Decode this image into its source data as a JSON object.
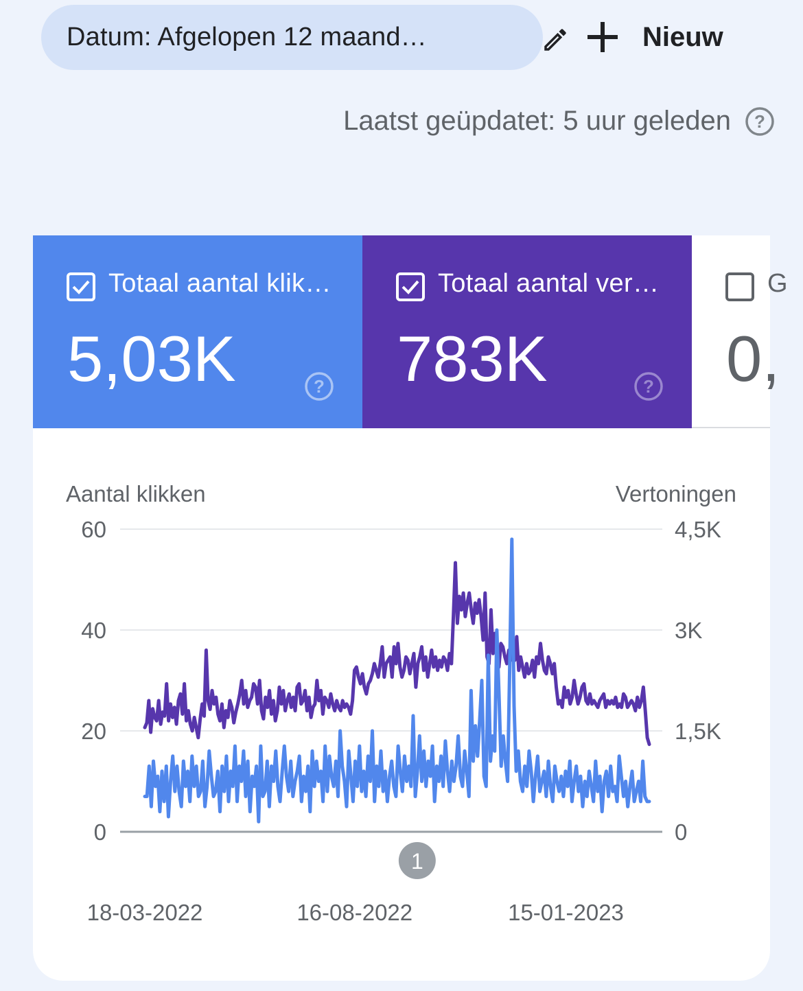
{
  "filter": {
    "label": "Datum: Afgelopen 12 maand…"
  },
  "new_button": {
    "label": "Nieuw"
  },
  "last_updated": "Laatst geüpdatet: 5 uur geleden",
  "metrics": [
    {
      "label": "Totaal aantal klik…",
      "value": "5,03K",
      "checked": true,
      "color": "#5187ec"
    },
    {
      "label": "Totaal aantal ver…",
      "value": "783K",
      "checked": true,
      "color": "#5736ac"
    },
    {
      "label": "G",
      "value": "0,",
      "checked": false,
      "color": "#ffffff"
    }
  ],
  "chart_data": {
    "type": "line",
    "left_axis_label": "Aantal klikken",
    "right_axis_label": "Vertoningen",
    "left_ticks": [
      "0",
      "20",
      "40",
      "60"
    ],
    "right_ticks": [
      "0",
      "1,5K",
      "3K",
      "4,5K"
    ],
    "ylim_left": [
      0,
      60
    ],
    "ylim_right": [
      0,
      4500
    ],
    "x_tick_labels": [
      "18-03-2022",
      "16-08-2022",
      "15-01-2023"
    ],
    "x_range": [
      "2022-03-18",
      "2023-03-16"
    ],
    "annotation": "1",
    "annotation_date": "2022-09-30",
    "series": [
      {
        "axis": "left",
        "color": "#5187ec",
        "values": [
          7,
          7,
          13,
          5,
          14,
          9,
          11,
          4,
          12,
          6,
          13,
          3,
          10,
          15,
          8,
          13,
          8,
          5,
          14,
          9,
          12,
          6,
          15,
          9,
          13,
          7,
          8,
          14,
          5,
          9,
          16,
          11,
          7,
          8,
          12,
          4,
          13,
          8,
          15,
          6,
          12,
          9,
          17,
          6,
          13,
          10,
          16,
          7,
          14,
          4,
          11,
          9,
          13,
          2,
          17,
          7,
          8,
          14,
          5,
          13,
          10,
          16,
          9,
          6,
          12,
          17,
          11,
          8,
          14,
          7,
          10,
          12,
          15,
          6,
          11,
          8,
          13,
          4,
          16,
          9,
          14,
          10,
          12,
          6,
          17,
          8,
          15,
          11,
          9,
          14,
          7,
          20,
          13,
          10,
          5,
          16,
          11,
          6,
          14,
          9,
          17,
          8,
          12,
          7,
          15,
          10,
          20,
          6,
          13,
          9,
          16,
          8,
          12,
          6,
          11,
          14,
          9,
          7,
          17,
          12,
          8,
          15,
          10,
          13,
          9,
          23,
          7,
          12,
          19,
          10,
          16,
          9,
          14,
          11,
          17,
          6,
          13,
          10,
          15,
          9,
          18,
          12,
          8,
          14,
          10,
          13,
          19,
          11,
          9,
          16,
          12,
          7,
          28,
          14,
          21,
          15,
          22,
          30,
          11,
          9,
          35,
          14,
          19,
          16,
          40,
          27,
          13,
          19,
          14,
          10,
          33,
          58,
          25,
          12,
          16,
          10,
          8,
          13,
          9,
          16,
          12,
          6,
          11,
          15,
          8,
          10,
          12,
          7,
          14,
          9,
          6,
          13,
          10,
          8,
          11,
          7,
          12,
          9,
          14,
          6,
          10,
          13,
          8,
          11,
          5,
          10,
          7,
          12,
          9,
          6,
          14,
          8,
          11,
          4,
          10,
          12,
          7,
          13,
          8,
          9,
          6,
          15,
          11,
          7,
          10,
          5,
          9,
          12,
          6,
          8,
          10,
          6,
          14,
          7,
          6,
          6
        ]
      },
      {
        "axis": "right",
        "color": "#5736ac",
        "values": [
          1550,
          1620,
          1950,
          1480,
          1830,
          1700,
          1650,
          1950,
          1600,
          1780,
          1720,
          2200,
          1650,
          1900,
          1700,
          1850,
          1600,
          1950,
          2050,
          1750,
          2200,
          1650,
          1800,
          1600,
          1500,
          1700,
          1550,
          1400,
          1680,
          1900,
          1720,
          2700,
          1950,
          1820,
          2100,
          1900,
          2000,
          1750,
          1650,
          1900,
          1550,
          1800,
          1700,
          1950,
          1850,
          1620,
          1780,
          1900,
          2050,
          2250,
          1900,
          2100,
          1850,
          1950,
          2000,
          2200,
          2150,
          1900,
          2250,
          1800,
          1680,
          2000,
          1850,
          2100,
          1750,
          1950,
          1650,
          1800,
          2150,
          1900,
          2100,
          1800,
          1950,
          2050,
          1850,
          2000,
          1800,
          2150,
          2200,
          1900,
          1950,
          2100,
          1800,
          2000,
          1700,
          1850,
          1900,
          2250,
          1950,
          2100,
          1750,
          2000,
          1950,
          1850,
          2050,
          1900,
          1800,
          1950,
          1850,
          1800,
          1950,
          1850,
          1900,
          1850,
          1750,
          1950,
          2400,
          2450,
          2300,
          2200,
          2350,
          2150,
          2050,
          2200,
          2250,
          2350,
          2500,
          2400,
          2300,
          2500,
          2750,
          2300,
          2500,
          2550,
          2600,
          2300,
          2750,
          2500,
          2800,
          2450,
          2300,
          2400,
          2600,
          2550,
          2350,
          2500,
          2650,
          2150,
          2500,
          2600,
          2750,
          2400,
          2600,
          2300,
          2500,
          2700,
          2450,
          2600,
          2400,
          2550,
          2450,
          2600,
          2550,
          2400,
          2650,
          2500,
          3200,
          4000,
          3100,
          3500,
          3300,
          3550,
          3200,
          3400,
          3550,
          3300,
          3100,
          3400,
          3250,
          3450,
          3200,
          2850,
          3550,
          2600,
          2500,
          3300,
          2650,
          2950,
          2550,
          2450,
          2800,
          2750,
          2600,
          2500,
          2700,
          2550,
          2650,
          2550,
          2900,
          2400,
          2600,
          2450,
          2300,
          2500,
          2350,
          2400,
          2550,
          2300,
          2600,
          2500,
          2800,
          2550,
          2400,
          2350,
          2600,
          2500,
          2350,
          2500,
          2150,
          1900,
          1950,
          1850,
          2150,
          2000,
          2100,
          1900,
          2000,
          2250,
          2050,
          1900,
          2000,
          2150,
          2200,
          1950,
          1900,
          2050,
          1900,
          1950,
          1900,
          1850,
          1950,
          2000,
          2050,
          1850,
          1950,
          1900,
          1950,
          1900,
          2000,
          1850,
          1900,
          1850,
          2050,
          2000,
          1850,
          1900,
          1950,
          1900,
          1800,
          2000,
          1850,
          1950,
          2150,
          1800,
          1400,
          1300
        ]
      }
    ]
  }
}
